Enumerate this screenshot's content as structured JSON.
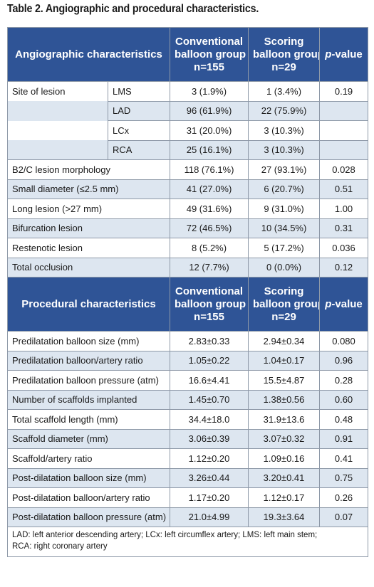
{
  "title": "Table 2. Angiographic and procedural characteristics.",
  "angio_header": {
    "label": "Angiographic characteristics",
    "col1_line1": "Conventional",
    "col1_line2": "balloon group",
    "col1_line3": "n=155",
    "col2_line1": "Scoring",
    "col2_line2": "balloon group",
    "col2_line3": "n=29",
    "pvalue_p": "p",
    "pvalue_rest": "-value"
  },
  "site": {
    "label": "Site of lesion",
    "rows": [
      {
        "sub": "LMS",
        "conv": "3 (1.9%)",
        "scoring": "1 (3.4%)",
        "p": "0.19"
      },
      {
        "sub": "LAD",
        "conv": "96 (61.9%)",
        "scoring": "22 (75.9%)",
        "p": ""
      },
      {
        "sub": "LCx",
        "conv": "31 (20.0%)",
        "scoring": "3 (10.3%)",
        "p": ""
      },
      {
        "sub": "RCA",
        "conv": "25 (16.1%)",
        "scoring": "3 (10.3%)",
        "p": ""
      }
    ]
  },
  "angio_rows": [
    {
      "label": "B2/C lesion morphology",
      "conv": "118 (76.1%)",
      "scoring": "27 (93.1%)",
      "p": "0.028"
    },
    {
      "label": "Small diameter (≤2.5 mm)",
      "conv": "41 (27.0%)",
      "scoring": "6 (20.7%)",
      "p": "0.51"
    },
    {
      "label": "Long lesion (>27 mm)",
      "conv": "49 (31.6%)",
      "scoring": "9 (31.0%)",
      "p": "1.00"
    },
    {
      "label": "Bifurcation lesion",
      "conv": "72 (46.5%)",
      "scoring": "10 (34.5%)",
      "p": "0.31"
    },
    {
      "label": "Restenotic lesion",
      "conv": "8 (5.2%)",
      "scoring": "5 (17.2%)",
      "p": "0.036"
    },
    {
      "label": "Total occlusion",
      "conv": "12 (7.7%)",
      "scoring": "0 (0.0%)",
      "p": "0.12"
    }
  ],
  "proc_header": {
    "label": "Procedural characteristics",
    "col1_line1": "Conventional",
    "col1_line2": "balloon group",
    "col1_line3": "n=155",
    "col2_line1": "Scoring",
    "col2_line2": "balloon group",
    "col2_line3": "n=29",
    "pvalue_p": "p",
    "pvalue_rest": "-value"
  },
  "proc_rows": [
    {
      "label": "Predilatation balloon size (mm)",
      "conv": "2.83±0.33",
      "scoring": "2.94±0.34",
      "p": "0.080"
    },
    {
      "label": "Predilatation balloon/artery ratio",
      "conv": "1.05±0.22",
      "scoring": "1.04±0.17",
      "p": "0.96"
    },
    {
      "label": "Predilatation balloon pressure (atm)",
      "conv": "16.6±4.41",
      "scoring": "15.5±4.87",
      "p": "0.28"
    },
    {
      "label": "Number of scaffolds implanted",
      "conv": "1.45±0.70",
      "scoring": "1.38±0.56",
      "p": "0.60"
    },
    {
      "label": "Total scaffold length (mm)",
      "conv": "34.4±18.0",
      "scoring": "31.9±13.6",
      "p": "0.48"
    },
    {
      "label": "Scaffold diameter (mm)",
      "conv": "3.06±0.39",
      "scoring": "3.07±0.32",
      "p": "0.91"
    },
    {
      "label": "Scaffold/artery ratio",
      "conv": "1.12±0.20",
      "scoring": "1.09±0.16",
      "p": "0.41"
    },
    {
      "label": "Post-dilatation balloon size (mm)",
      "conv": "3.26±0.44",
      "scoring": "3.20±0.41",
      "p": "0.75"
    },
    {
      "label": "Post-dilatation balloon/artery ratio",
      "conv": "1.17±0.20",
      "scoring": "1.12±0.17",
      "p": "0.26"
    },
    {
      "label": "Post-dilatation balloon pressure (atm)",
      "conv": "21.0±4.99",
      "scoring": "19.3±3.64",
      "p": "0.07"
    }
  ],
  "footnote_line1": "LAD: left anterior descending artery; LCx: left circumflex artery; LMS: left main stem;",
  "footnote_line2": "RCA: right coronary artery"
}
